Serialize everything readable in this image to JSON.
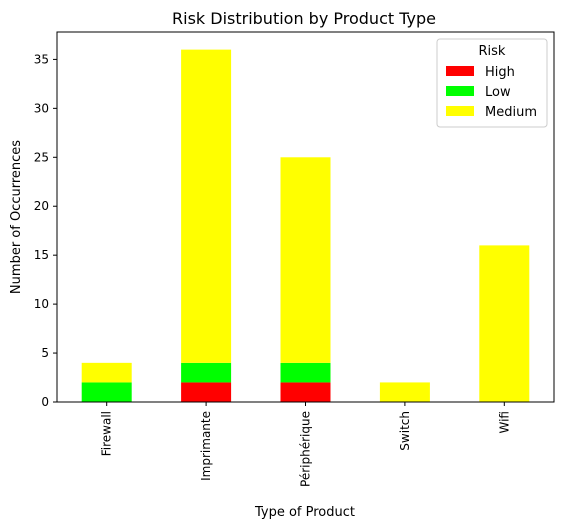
{
  "chart_data": {
    "type": "bar",
    "stacked": true,
    "title": "Risk Distribution by Product Type",
    "xlabel": "Type of Product",
    "ylabel": "Number of Occurrences",
    "categories": [
      "Firewall",
      "Imprimante",
      "Périphérique",
      "Switch",
      "Wifi"
    ],
    "series": [
      {
        "name": "High",
        "color": "#ff0000",
        "values": [
          0,
          2,
          2,
          0,
          0
        ]
      },
      {
        "name": "Low",
        "color": "#00ff00",
        "values": [
          2,
          2,
          2,
          0,
          0
        ]
      },
      {
        "name": "Medium",
        "color": "#ffff00",
        "values": [
          2,
          32,
          21,
          2,
          16
        ]
      }
    ],
    "ylim": [
      0,
      37.8
    ],
    "yticks": [
      0,
      5,
      10,
      15,
      20,
      25,
      30,
      35
    ],
    "grid": false,
    "legend": {
      "title": "Risk",
      "placement": "top-right"
    }
  }
}
